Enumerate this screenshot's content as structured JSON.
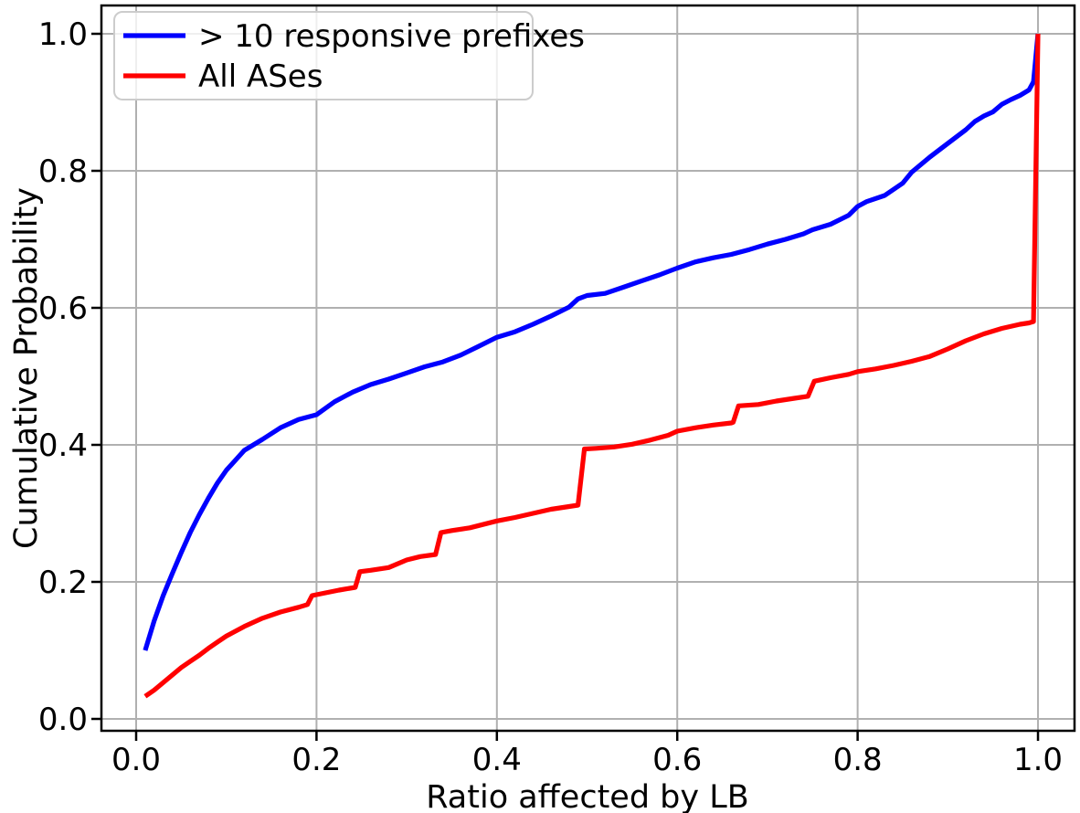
{
  "chart_data": {
    "type": "line",
    "title": "",
    "xlabel": "Ratio affected by LB",
    "ylabel": "Cumulative Probability",
    "xlim": [
      -0.0385,
      1.0405
    ],
    "ylim": [
      -0.01733,
      1.04133
    ],
    "xticks": [
      0.0,
      0.2,
      0.4,
      0.6,
      0.8,
      1.0
    ],
    "yticks": [
      0.0,
      0.2,
      0.4,
      0.6,
      0.8,
      1.0
    ],
    "xtick_labels": [
      "0.0",
      "0.2",
      "0.4",
      "0.6",
      "0.8",
      "1.0"
    ],
    "ytick_labels": [
      "0.0",
      "0.2",
      "0.4",
      "0.6",
      "0.8",
      "1.0"
    ],
    "grid": true,
    "legend": {
      "position": "upper left"
    },
    "series": [
      {
        "name": "> 10 responsive prefixes",
        "color": "#0000ff",
        "x": [
          0.01,
          0.02,
          0.03,
          0.04,
          0.05,
          0.06,
          0.07,
          0.08,
          0.09,
          0.1,
          0.12,
          0.14,
          0.16,
          0.18,
          0.2,
          0.22,
          0.24,
          0.26,
          0.28,
          0.3,
          0.32,
          0.34,
          0.36,
          0.38,
          0.4,
          0.42,
          0.44,
          0.46,
          0.48,
          0.49,
          0.5,
          0.52,
          0.54,
          0.56,
          0.58,
          0.6,
          0.62,
          0.64,
          0.66,
          0.68,
          0.7,
          0.72,
          0.74,
          0.75,
          0.77,
          0.79,
          0.8,
          0.81,
          0.83,
          0.85,
          0.86,
          0.88,
          0.9,
          0.92,
          0.93,
          0.94,
          0.95,
          0.96,
          0.97,
          0.98,
          0.99,
          0.995,
          1.0
        ],
        "y": [
          0.1,
          0.143,
          0.18,
          0.212,
          0.243,
          0.272,
          0.298,
          0.322,
          0.344,
          0.363,
          0.392,
          0.408,
          0.425,
          0.437,
          0.444,
          0.463,
          0.477,
          0.488,
          0.496,
          0.505,
          0.514,
          0.521,
          0.531,
          0.544,
          0.557,
          0.565,
          0.576,
          0.588,
          0.601,
          0.613,
          0.618,
          0.621,
          0.63,
          0.639,
          0.648,
          0.658,
          0.667,
          0.673,
          0.678,
          0.685,
          0.693,
          0.7,
          0.708,
          0.714,
          0.722,
          0.735,
          0.748,
          0.755,
          0.764,
          0.782,
          0.798,
          0.82,
          0.84,
          0.86,
          0.872,
          0.88,
          0.886,
          0.897,
          0.904,
          0.91,
          0.918,
          0.93,
          1.0
        ]
      },
      {
        "name": "All ASes",
        "color": "#ff0000",
        "x": [
          0.01,
          0.02,
          0.03,
          0.04,
          0.05,
          0.06,
          0.07,
          0.08,
          0.09,
          0.1,
          0.12,
          0.14,
          0.16,
          0.18,
          0.19,
          0.195,
          0.21,
          0.225,
          0.243,
          0.248,
          0.26,
          0.28,
          0.3,
          0.315,
          0.332,
          0.338,
          0.35,
          0.37,
          0.4,
          0.42,
          0.44,
          0.46,
          0.48,
          0.49,
          0.497,
          0.51,
          0.53,
          0.55,
          0.57,
          0.59,
          0.6,
          0.62,
          0.64,
          0.66,
          0.662,
          0.668,
          0.69,
          0.71,
          0.73,
          0.745,
          0.752,
          0.77,
          0.79,
          0.8,
          0.82,
          0.84,
          0.86,
          0.88,
          0.9,
          0.92,
          0.94,
          0.96,
          0.98,
          0.99,
          0.995,
          1.0
        ],
        "y": [
          0.033,
          0.042,
          0.053,
          0.064,
          0.075,
          0.084,
          0.093,
          0.103,
          0.112,
          0.121,
          0.135,
          0.147,
          0.156,
          0.163,
          0.167,
          0.18,
          0.184,
          0.188,
          0.192,
          0.215,
          0.217,
          0.221,
          0.232,
          0.237,
          0.24,
          0.272,
          0.275,
          0.279,
          0.289,
          0.294,
          0.3,
          0.306,
          0.31,
          0.312,
          0.394,
          0.395,
          0.397,
          0.401,
          0.407,
          0.414,
          0.42,
          0.425,
          0.429,
          0.432,
          0.433,
          0.457,
          0.459,
          0.464,
          0.468,
          0.471,
          0.493,
          0.498,
          0.503,
          0.507,
          0.511,
          0.516,
          0.522,
          0.529,
          0.54,
          0.552,
          0.562,
          0.57,
          0.576,
          0.578,
          0.58,
          1.0
        ]
      }
    ]
  },
  "colors": {
    "background": "#ffffff",
    "grid": "#b0b0b0",
    "spine": "#000000",
    "tick": "#000000",
    "legend_border": "#cccccc",
    "blue_line": "#0000ff",
    "red_line": "#ff0000"
  }
}
